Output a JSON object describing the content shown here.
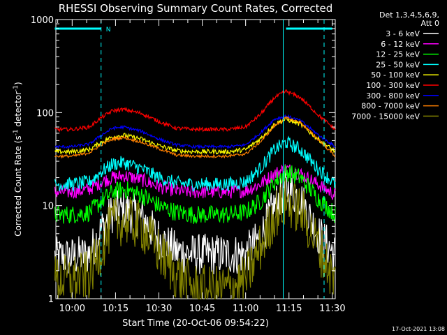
{
  "chart_data": {
    "type": "line",
    "title": "RHESSI Observing Summary Count Rates, Corrected",
    "xlabel": "Start Time (20-Oct-06 09:54:22)",
    "ylabel_main": "Corrected Count Rate (s",
    "ylabel_sup1": "-1",
    "ylabel_mid": " detector",
    "ylabel_sup2": "-1",
    "ylabel_end": ")",
    "x_scale": "time",
    "y_scale": "log",
    "xlim": [
      "09:54:22",
      "11:31:00"
    ],
    "ylim": [
      1,
      1000
    ],
    "x_ticks": [
      "10:00",
      "10:15",
      "10:30",
      "10:45",
      "11:00",
      "11:15",
      "11:30"
    ],
    "y_ticks": [
      "1",
      "10",
      "100",
      "1000"
    ],
    "legend_header": [
      "Det 1,3,4,5,6,9,",
      "Att 0"
    ],
    "legend_position": "right, outside plot",
    "markers": {
      "n_label": "N",
      "dashed_lines": [
        "10:10",
        "11:31"
      ],
      "solid_line": "11:13",
      "cyan_bars": [
        [
          "09:54",
          "10:10"
        ],
        [
          "11:14",
          "11:30"
        ]
      ]
    },
    "series": [
      {
        "name": "3 - 6 keV",
        "color": "#ffffff",
        "noise": 0.9,
        "values": [
          2.8,
          2.8,
          3,
          5.5,
          8.5,
          9,
          7.5,
          4.5,
          3.2,
          3,
          3,
          3,
          3,
          4.5,
          10,
          15,
          12,
          5,
          3
        ]
      },
      {
        "name": "6 - 12 keV",
        "color": "#ff00ff",
        "noise": 0.15,
        "values": [
          14,
          14,
          15,
          18,
          20,
          21,
          19,
          16,
          14.5,
          14,
          14,
          14,
          14.5,
          17,
          22,
          25,
          22,
          17,
          13
        ]
      },
      {
        "name": "12 - 25 keV",
        "color": "#00ff00",
        "noise": 0.2,
        "values": [
          8,
          8,
          8.5,
          11,
          14,
          15,
          13,
          10,
          8.5,
          8,
          8,
          8,
          8.5,
          11,
          18,
          23,
          20,
          12,
          8
        ]
      },
      {
        "name": "25 - 50 keV",
        "color": "#00ffff",
        "noise": 0.15,
        "values": [
          17,
          17,
          18,
          23,
          28,
          29,
          25,
          20,
          17.5,
          17,
          17,
          17,
          18,
          25,
          40,
          48,
          40,
          25,
          17
        ]
      },
      {
        "name": "50 - 100 keV",
        "color": "#ffff00",
        "noise": 0.05,
        "values": [
          38,
          38,
          40,
          48,
          55,
          57,
          52,
          44,
          39,
          38,
          38,
          38,
          40,
          52,
          75,
          85,
          75,
          52,
          38
        ]
      },
      {
        "name": "100 - 300 keV",
        "color": "#ff0000",
        "noise": 0.04,
        "values": [
          66,
          66,
          70,
          88,
          105,
          108,
          98,
          80,
          68,
          66,
          66,
          66,
          70,
          95,
          145,
          170,
          145,
          95,
          66
        ]
      },
      {
        "name": "300 - 800 keV",
        "color": "#0000ff",
        "noise": 0.03,
        "values": [
          43,
          43,
          46,
          57,
          68,
          70,
          63,
          52,
          45,
          43,
          43,
          43,
          45,
          60,
          85,
          92,
          82,
          58,
          43
        ]
      },
      {
        "name": "800 - 7000 keV",
        "color": "#ff8000",
        "noise": 0.03,
        "values": [
          34,
          34,
          37,
          45,
          52,
          54,
          48,
          41,
          35,
          34,
          34,
          34,
          36,
          48,
          72,
          88,
          78,
          52,
          34
        ]
      },
      {
        "name": "7000 - 15000 keV",
        "color": "#808000",
        "noise": 1.1,
        "values": [
          1.6,
          1.6,
          1.8,
          3.5,
          6.5,
          7,
          6,
          3.2,
          1.8,
          1.3,
          1.2,
          1.3,
          1.6,
          3.5,
          8,
          11,
          9,
          3.8,
          1.5
        ]
      }
    ],
    "series_times": [
      "09:54",
      "10:00",
      "10:06",
      "10:10",
      "10:14",
      "10:18",
      "10:24",
      "10:30",
      "10:36",
      "10:42",
      "10:48",
      "10:54",
      "11:00",
      "11:05",
      "11:10",
      "11:14",
      "11:19",
      "11:25",
      "11:31"
    ]
  },
  "footer": {
    "timestamp": "17-Oct-2021 13:08"
  }
}
